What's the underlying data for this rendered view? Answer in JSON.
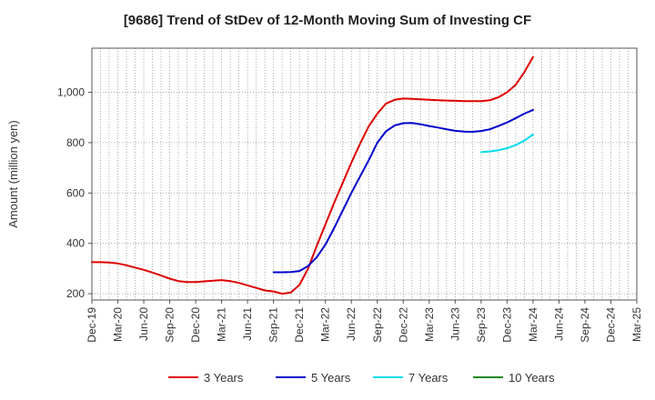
{
  "chart_data": {
    "type": "line",
    "title": "[9686]  Trend of StDev of 12-Month Moving Sum of Investing CF",
    "xlabel": "",
    "ylabel": "Amount (million yen)",
    "ylim": [
      175,
      1175
    ],
    "yticks": [
      200,
      400,
      600,
      800,
      1000
    ],
    "ytick_labels": [
      "200",
      "400",
      "600",
      "800",
      "1,000"
    ],
    "x_start": "2019-12",
    "x_end": "2025-03",
    "xtick_labels": [
      "Dec-19",
      "Mar-20",
      "Jun-20",
      "Sep-20",
      "Dec-20",
      "Mar-21",
      "Jun-21",
      "Sep-21",
      "Dec-21",
      "Mar-22",
      "Jun-22",
      "Sep-22",
      "Dec-22",
      "Mar-23",
      "Jun-23",
      "Sep-23",
      "Dec-23",
      "Mar-24",
      "Jun-24",
      "Sep-24",
      "Dec-24",
      "Mar-25"
    ],
    "grid": true,
    "legend_position": "bottom",
    "series": [
      {
        "name": "3 Years",
        "color": "#dd0000",
        "x": [
          "2019-12",
          "2020-01",
          "2020-02",
          "2020-03",
          "2020-04",
          "2020-05",
          "2020-06",
          "2020-07",
          "2020-08",
          "2020-09",
          "2020-10",
          "2020-11",
          "2020-12",
          "2021-01",
          "2021-02",
          "2021-03",
          "2021-04",
          "2021-05",
          "2021-06",
          "2021-07",
          "2021-08",
          "2021-09",
          "2021-10",
          "2021-11",
          "2021-12",
          "2022-01",
          "2022-02",
          "2022-03",
          "2022-04",
          "2022-05",
          "2022-06",
          "2022-07",
          "2022-08",
          "2022-09",
          "2022-10",
          "2022-11",
          "2022-12",
          "2023-01",
          "2023-02",
          "2023-03",
          "2023-04",
          "2023-05",
          "2023-06",
          "2023-07",
          "2023-08",
          "2023-09",
          "2023-10",
          "2023-11",
          "2023-12",
          "2024-01",
          "2024-02",
          "2024-03"
        ],
        "values": [
          325,
          325,
          324,
          320,
          313,
          304,
          295,
          284,
          272,
          260,
          250,
          246,
          246,
          249,
          252,
          254,
          250,
          243,
          233,
          223,
          213,
          209,
          200,
          205,
          235,
          300,
          390,
          475,
          560,
          640,
          720,
          795,
          865,
          915,
          955,
          970,
          975,
          974,
          972,
          970,
          968,
          967,
          966,
          965,
          965,
          965,
          968,
          980,
          1000,
          1030,
          1080,
          1140
        ]
      },
      {
        "name": "5 Years",
        "color": "#0000cc",
        "x": [
          "2021-09",
          "2021-10",
          "2021-11",
          "2021-12",
          "2022-01",
          "2022-02",
          "2022-03",
          "2022-04",
          "2022-05",
          "2022-06",
          "2022-07",
          "2022-08",
          "2022-09",
          "2022-10",
          "2022-11",
          "2022-12",
          "2023-01",
          "2023-02",
          "2023-03",
          "2023-04",
          "2023-05",
          "2023-06",
          "2023-07",
          "2023-08",
          "2023-09",
          "2023-10",
          "2023-11",
          "2023-12",
          "2024-01",
          "2024-02",
          "2024-03"
        ],
        "values": [
          285,
          285,
          286,
          290,
          310,
          345,
          395,
          460,
          530,
          600,
          665,
          730,
          800,
          845,
          868,
          877,
          878,
          873,
          866,
          860,
          853,
          847,
          844,
          843,
          846,
          853,
          866,
          880,
          897,
          915,
          930
        ]
      },
      {
        "name": "7 Years",
        "color": "#00ddee",
        "x": [
          "2023-09",
          "2023-10",
          "2023-11",
          "2023-12",
          "2024-01",
          "2024-02",
          "2024-03"
        ],
        "values": [
          762,
          765,
          770,
          778,
          790,
          808,
          832
        ]
      },
      {
        "name": "10 Years",
        "color": "#228822",
        "x": [],
        "values": []
      }
    ]
  }
}
